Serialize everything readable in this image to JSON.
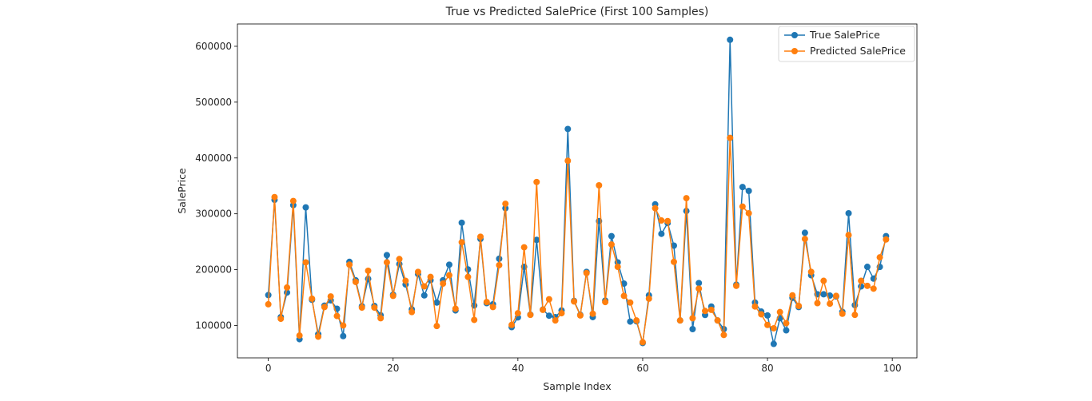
{
  "colors": {
    "true": "#1f77b4",
    "pred": "#ff7f0e"
  },
  "chart_data": {
    "type": "line",
    "title": "True vs Predicted SalePrice (First 100 Samples)",
    "xlabel": "Sample Index",
    "ylabel": "SalePrice",
    "xlim": [
      -4.95,
      103.95
    ],
    "ylim": [
      42000,
      640000
    ],
    "xticks": [
      0,
      20,
      40,
      60,
      80,
      100
    ],
    "yticks": [
      100000,
      200000,
      300000,
      400000,
      500000,
      600000
    ],
    "legend_position": "upper right",
    "markers": "circle",
    "series": [
      {
        "name": "True SalePrice",
        "color": "#1f77b4",
        "values": [
          154500,
          325000,
          115000,
          159000,
          315500,
          75500,
          311500,
          146000,
          84500,
          135500,
          145000,
          130000,
          81000,
          214000,
          181000,
          134500,
          183500,
          135000,
          118400,
          226000,
          155000,
          210000,
          173500,
          129000,
          192000,
          153900,
          181134,
          141000,
          181000,
          208900,
          127000,
          284000,
          200500,
          135750,
          255000,
          140000,
          138000,
          219500,
          310000,
          97000,
          114500,
          205000,
          119500,
          253293,
          128500,
          117500,
          115000,
          127000,
          451950,
          144000,
          119000,
          196000,
          115000,
          287000,
          144500,
          260000,
          213000,
          175000,
          107000,
          107500,
          68500,
          154000,
          317000,
          264132,
          283463,
          243000,
          109000,
          305000,
          93500,
          176000,
          118858,
          134000,
          109008,
          93500,
          611657,
          173000,
          348000,
          341000,
          141000,
          124900,
          118000,
          67000,
          113000,
          91300,
          149500,
          133000,
          266000,
          190000,
          155900,
          155835,
          153500,
          152000,
          124500,
          301000,
          136500,
          169990,
          205000,
          183900,
          204900,
          260000
        ]
      },
      {
        "name": "Predicted SalePrice",
        "color": "#ff7f0e",
        "values": [
          138000,
          330000,
          112000,
          168000,
          323000,
          82000,
          213000,
          148000,
          80000,
          133000,
          152000,
          117000,
          100000,
          209000,
          178000,
          132000,
          198000,
          132000,
          113000,
          213000,
          153000,
          219000,
          180000,
          124000,
          196000,
          170000,
          187000,
          99000,
          175000,
          190000,
          130000,
          249000,
          187000,
          110000,
          259000,
          142000,
          133000,
          208000,
          318000,
          101000,
          122000,
          240000,
          119000,
          357000,
          128000,
          147000,
          109000,
          122000,
          395000,
          143000,
          118000,
          194000,
          121000,
          351000,
          142000,
          245000,
          205000,
          153000,
          141000,
          109000,
          70000,
          148000,
          310000,
          288000,
          287000,
          214000,
          109000,
          328000,
          113000,
          166000,
          126000,
          128000,
          109000,
          83000,
          436000,
          171000,
          313000,
          301000,
          134000,
          120000,
          101000,
          95000,
          124000,
          104000,
          154000,
          135000,
          255000,
          196000,
          140000,
          180000,
          139000,
          153000,
          121000,
          262000,
          119000,
          180000,
          171000,
          166000,
          222000,
          254000
        ]
      }
    ]
  }
}
